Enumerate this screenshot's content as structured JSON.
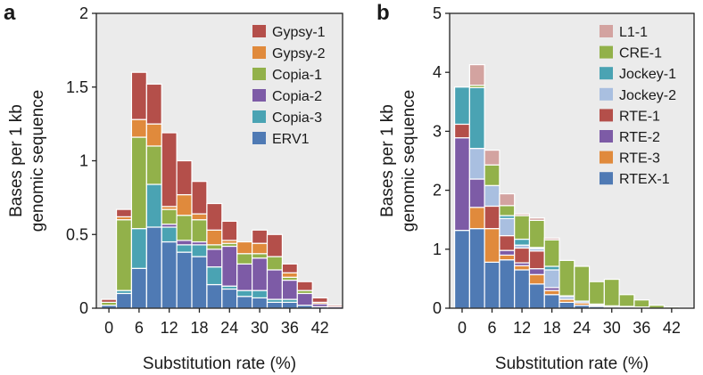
{
  "chart_data": [
    {
      "panel": "a",
      "type": "bar",
      "stacked": true,
      "xlabel": "Substitution rate (%)",
      "ylabel": "Bases per 1 kb genomic sequence",
      "ylabel_lines": [
        "Bases per 1 kb",
        "genomic sequence"
      ],
      "xlim": [
        -2.5,
        46.5
      ],
      "ylim": [
        0,
        2
      ],
      "x_ticks": [
        0,
        6,
        12,
        18,
        24,
        30,
        36,
        42
      ],
      "y_ticks": [
        0,
        0.5,
        1,
        1.5,
        2
      ],
      "y_tick_labels": [
        "0",
        "0.5",
        "1",
        "1.5",
        "2"
      ],
      "legend_position": "top-right",
      "bin_width": 3,
      "bins": [
        0,
        3,
        6,
        9,
        12,
        15,
        18,
        21,
        24,
        27,
        30,
        33,
        36,
        39,
        42,
        45
      ],
      "series": [
        {
          "name": "ERV1",
          "color": "#4f7ab4",
          "values": [
            0.02,
            0.1,
            0.27,
            0.55,
            0.45,
            0.38,
            0.35,
            0.16,
            0.13,
            0.08,
            0.07,
            0.04,
            0.04,
            0.02,
            0.01,
            0.0
          ]
        },
        {
          "name": "Copia-3",
          "color": "#4aa3b3",
          "values": [
            0.0,
            0.02,
            0.27,
            0.29,
            0.1,
            0.05,
            0.08,
            0.12,
            0.02,
            0.04,
            0.05,
            0.02,
            0.02,
            0.0,
            0.0,
            0.0
          ]
        },
        {
          "name": "Copia-2",
          "color": "#7d5ba6",
          "values": [
            0.0,
            0.0,
            0.0,
            0.0,
            0.02,
            0.03,
            0.02,
            0.12,
            0.27,
            0.18,
            0.22,
            0.2,
            0.13,
            0.08,
            0.02,
            0.01
          ]
        },
        {
          "name": "Copia-1",
          "color": "#92b14a",
          "values": [
            0.02,
            0.48,
            0.62,
            0.26,
            0.1,
            0.17,
            0.15,
            0.03,
            0.02,
            0.07,
            0.03,
            0.09,
            0.02,
            0.02,
            0.0,
            0.0
          ]
        },
        {
          "name": "Gypsy-2",
          "color": "#e08a3c",
          "values": [
            0.0,
            0.02,
            0.12,
            0.15,
            0.02,
            0.14,
            0.04,
            0.1,
            0.02,
            0.08,
            0.07,
            0.0,
            0.03,
            0.0,
            0.01,
            0.0
          ]
        },
        {
          "name": "Gypsy-1",
          "color": "#b44f4a",
          "values": [
            0.02,
            0.05,
            0.32,
            0.27,
            0.5,
            0.23,
            0.22,
            0.18,
            0.13,
            0.0,
            0.09,
            0.15,
            0.06,
            0.06,
            0.03,
            0.01
          ]
        }
      ]
    },
    {
      "panel": "b",
      "type": "bar",
      "stacked": true,
      "xlabel": "Substitution rate (%)",
      "ylabel": "Bases per 1 kb genomic sequence",
      "ylabel_lines": [
        "Bases per 1 kb",
        "genomic sequence"
      ],
      "xlim": [
        -2.5,
        46.5
      ],
      "ylim": [
        0,
        5
      ],
      "x_ticks": [
        0,
        6,
        12,
        18,
        24,
        30,
        36,
        42
      ],
      "y_ticks": [
        0,
        1,
        2,
        3,
        4,
        5
      ],
      "y_tick_labels": [
        "0",
        "1",
        "2",
        "3",
        "4",
        "5"
      ],
      "legend_position": "top-right",
      "bin_width": 3,
      "bins": [
        0,
        3,
        6,
        9,
        12,
        15,
        18,
        21,
        24,
        27,
        30,
        33,
        36,
        39,
        42,
        45
      ],
      "series": [
        {
          "name": "RTEX-1",
          "color": "#4f7ab4",
          "values": [
            1.32,
            1.35,
            0.78,
            0.82,
            0.65,
            0.41,
            0.23,
            0.1,
            0.05,
            0.03,
            0.02,
            0.02,
            0.01,
            0.0,
            0.0,
            0.0
          ]
        },
        {
          "name": "RTE-3",
          "color": "#e08a3c",
          "values": [
            0.0,
            0.36,
            0.57,
            0.08,
            0.07,
            0.16,
            0.07,
            0.05,
            0.04,
            0.02,
            0.0,
            0.0,
            0.0,
            0.0,
            0.0,
            0.0
          ]
        },
        {
          "name": "RTE-2",
          "color": "#7d5ba6",
          "values": [
            1.57,
            0.48,
            0.0,
            0.08,
            0.05,
            0.1,
            0.05,
            0.0,
            0.0,
            0.0,
            0.0,
            0.0,
            0.0,
            0.0,
            0.0,
            0.0
          ]
        },
        {
          "name": "RTE-1",
          "color": "#b44f4a",
          "values": [
            0.23,
            0.0,
            0.38,
            0.25,
            0.25,
            0.3,
            0.0,
            0.0,
            0.0,
            0.0,
            0.0,
            0.0,
            0.0,
            0.0,
            0.0,
            0.0
          ]
        },
        {
          "name": "Jockey-2",
          "color": "#a9bfe0",
          "values": [
            0.0,
            0.52,
            0.35,
            0.29,
            0.05,
            0.04,
            0.3,
            0.05,
            0.03,
            0.02,
            0.02,
            0.01,
            0.01,
            0.0,
            0.0,
            0.0
          ]
        },
        {
          "name": "Jockey-1",
          "color": "#4aa3b3",
          "values": [
            0.63,
            1.03,
            0.0,
            0.05,
            0.1,
            0.02,
            0.06,
            0.01,
            0.0,
            0.0,
            0.0,
            0.0,
            0.0,
            0.0,
            0.0,
            0.0
          ]
        },
        {
          "name": "CRE-1",
          "color": "#92b14a",
          "values": [
            0.0,
            0.04,
            0.35,
            0.17,
            0.4,
            0.46,
            0.45,
            0.6,
            0.59,
            0.38,
            0.45,
            0.2,
            0.12,
            0.05,
            0.02,
            0.01
          ]
        },
        {
          "name": "L1-1",
          "color": "#d3a3a0",
          "values": [
            0.0,
            0.35,
            0.25,
            0.2,
            0.03,
            0.04,
            0.03,
            0.0,
            0.0,
            0.0,
            0.0,
            0.0,
            0.0,
            0.0,
            0.0,
            0.0
          ]
        }
      ]
    }
  ]
}
